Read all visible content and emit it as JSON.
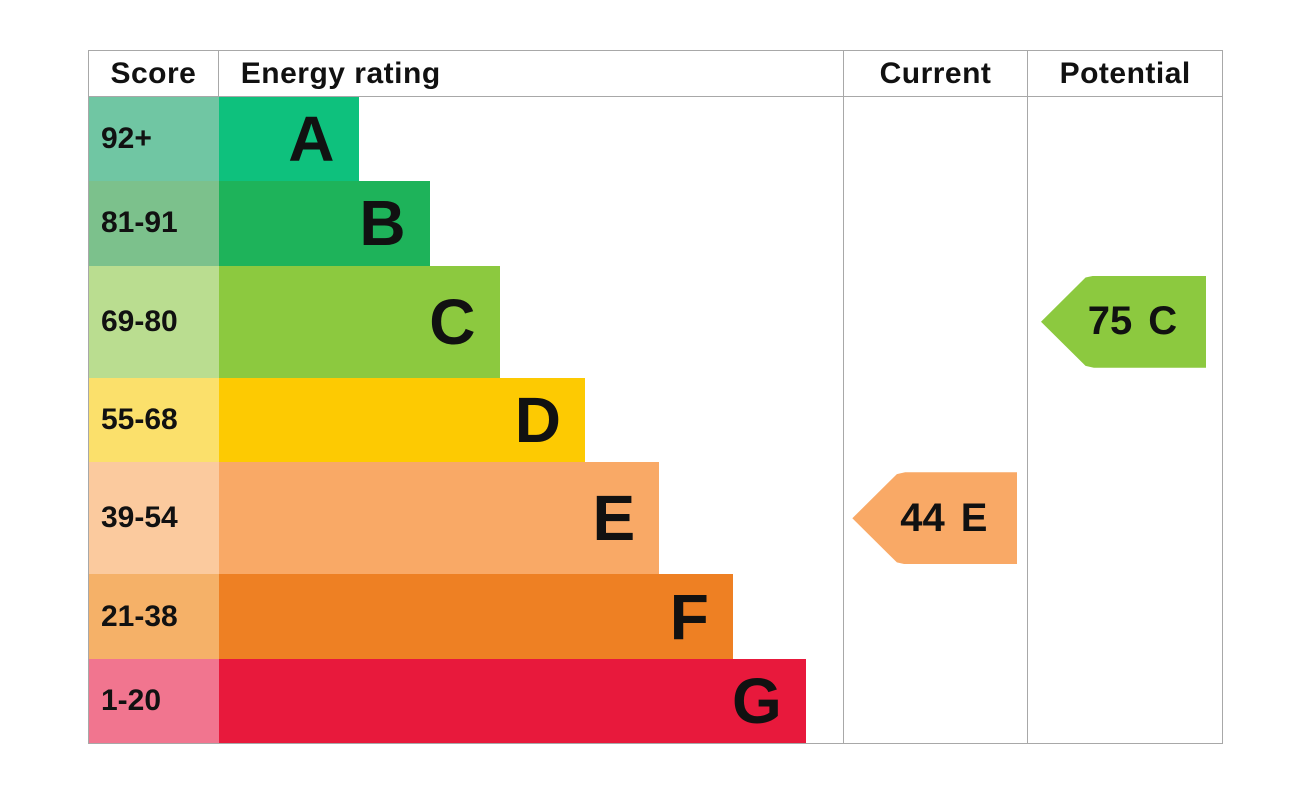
{
  "header": {
    "score": "Score",
    "energy_rating": "Energy rating",
    "current": "Current",
    "potential": "Potential"
  },
  "bands": [
    {
      "score": "92+",
      "letter": "A",
      "score_color": "#70c6a3",
      "bar_color": "#0ec17d",
      "bar_width_pct": 22.4
    },
    {
      "score": "81-91",
      "letter": "B",
      "score_color": "#7cc18c",
      "bar_color": "#1eb35a",
      "bar_width_pct": 33.8
    },
    {
      "score": "69-80",
      "letter": "C",
      "score_color": "#badd90",
      "bar_color": "#8cc93f",
      "bar_width_pct": 45.0
    },
    {
      "score": "55-68",
      "letter": "D",
      "score_color": "#fbe06b",
      "bar_color": "#fdca02",
      "bar_width_pct": 58.7
    },
    {
      "score": "39-54",
      "letter": "E",
      "score_color": "#fbca9e",
      "bar_color": "#f9a966",
      "bar_width_pct": 70.6
    },
    {
      "score": "21-38",
      "letter": "F",
      "score_color": "#f5b168",
      "bar_color": "#ee8023",
      "bar_width_pct": 82.4
    },
    {
      "score": "1-20",
      "letter": "G",
      "score_color": "#f1758f",
      "bar_color": "#e8193c",
      "bar_width_pct": 94.1
    }
  ],
  "current": {
    "value": "44",
    "band": "E",
    "color": "#f9a966"
  },
  "potential": {
    "value": "75",
    "band": "C",
    "color": "#8cc93f"
  },
  "colors": {
    "border": "#a8a8a8",
    "text": "#111111",
    "background": "#ffffff"
  },
  "chart_data": {
    "type": "bar",
    "orientation": "horizontal",
    "title": "Energy rating",
    "categories": [
      "A",
      "B",
      "C",
      "D",
      "E",
      "F",
      "G"
    ],
    "band_score_ranges": [
      "92+",
      "81-91",
      "69-80",
      "55-68",
      "39-54",
      "21-38",
      "1-20"
    ],
    "bar_relative_lengths": [
      22.4,
      33.8,
      45.0,
      58.7,
      70.6,
      82.4,
      94.1
    ],
    "band_colors": [
      "#0ec17d",
      "#1eb35a",
      "#8cc93f",
      "#fdca02",
      "#f9a966",
      "#ee8023",
      "#e8193c"
    ],
    "markers": [
      {
        "name": "Current",
        "score": 44,
        "band": "E",
        "color": "#f9a966"
      },
      {
        "name": "Potential",
        "score": 75,
        "band": "C",
        "color": "#8cc93f"
      }
    ],
    "legend_position": "none",
    "grid": false
  }
}
